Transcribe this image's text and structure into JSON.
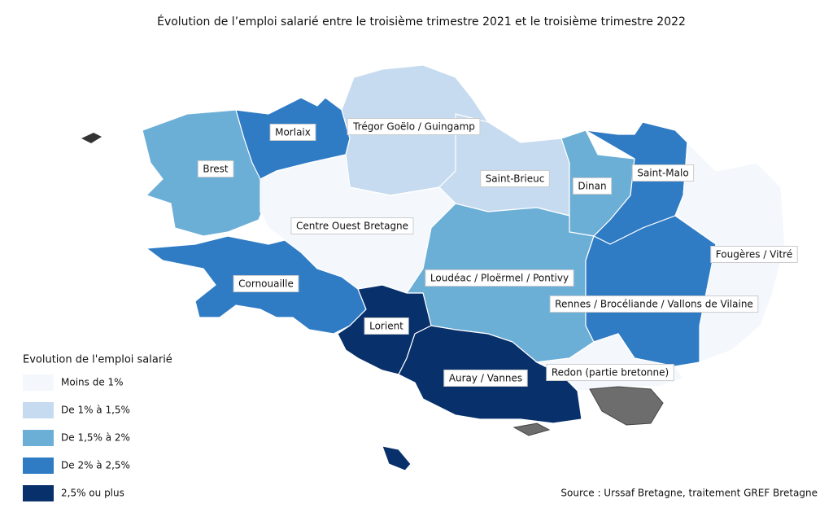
{
  "title": "Évolution de l’emploi salarié entre le troisième trimestre 2021 et le troisième trimestre 2022",
  "legend": {
    "title": "Evolution de l'emploi salarié",
    "classes": [
      {
        "label": "Moins de 1%",
        "color": "#f4f8fd"
      },
      {
        "label": "De 1% à 1,5%",
        "color": "#c6dbef"
      },
      {
        "label": "De 1,5% à 2%",
        "color": "#6baed6"
      },
      {
        "label": "De 2% à 2,5%",
        "color": "#2f7bc4"
      },
      {
        "label": "2,5% ou plus",
        "color": "#08306b"
      }
    ]
  },
  "regions": [
    {
      "label": "Brest",
      "class": 2
    },
    {
      "label": "Morlaix",
      "class": 3
    },
    {
      "label": "Trégor Goëlo / Guingamp",
      "class": 1
    },
    {
      "label": "Saint-Brieuc",
      "class": 1
    },
    {
      "label": "Dinan",
      "class": 2
    },
    {
      "label": "Saint-Malo",
      "class": 3
    },
    {
      "label": "Fougères / Vitré",
      "class": 0
    },
    {
      "label": "Centre Ouest Bretagne",
      "class": 0
    },
    {
      "label": "Loudéac / Ploërmel / Pontivy",
      "class": 2
    },
    {
      "label": "Rennes / Brocéliande / Vallons de Vilaine",
      "class": 3
    },
    {
      "label": "Cornouaille",
      "class": 3
    },
    {
      "label": "Lorient",
      "class": 4
    },
    {
      "label": "Auray / Vannes",
      "class": 4
    },
    {
      "label": "Redon (partie bretonne)",
      "class": 0
    }
  ],
  "source": "Source : Urssaf Bretagne, traitement GREF Bretagne"
}
